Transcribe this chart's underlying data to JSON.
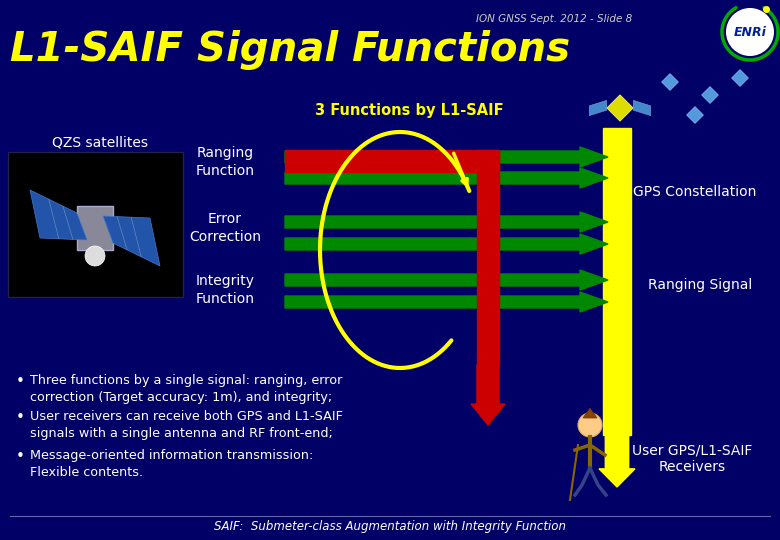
{
  "bg_color": "#000066",
  "title": "L1-SAIF Signal Functions",
  "title_color": "#FFFF00",
  "header_text": "ION GNSS Sept. 2012 - Slide 8",
  "header_color": "#CCCCCC",
  "subtitle": "3 Functions by L1-SAIF",
  "subtitle_color": "#FFFF00",
  "qzs_label": "QZS satellites",
  "gps_label": "GPS Constellation",
  "ranging_signal_label": "Ranging Signal",
  "user_label": "User GPS/L1-SAIF\nReceivers",
  "functions": [
    "Ranging\nFunction",
    "Error\nCorrection",
    "Integrity\nFunction"
  ],
  "bullet_points": [
    "Three functions by a single signal: ranging, error\ncorrection (Target accuracy: 1m), and integrity;",
    "User receivers can receive both GPS and L1-SAIF\nsignals with a single antenna and RF front-end;",
    "Message-oriented information transmission:\nFlexible contents."
  ],
  "footer": "SAIF:  Submeter-class Augmentation with Integrity Function",
  "text_color": "#FFFFFF",
  "green": "#008800",
  "red": "#CC0000",
  "yellow": "#FFFF00",
  "enri_blue": "#002299",
  "enri_green": "#00AA00"
}
